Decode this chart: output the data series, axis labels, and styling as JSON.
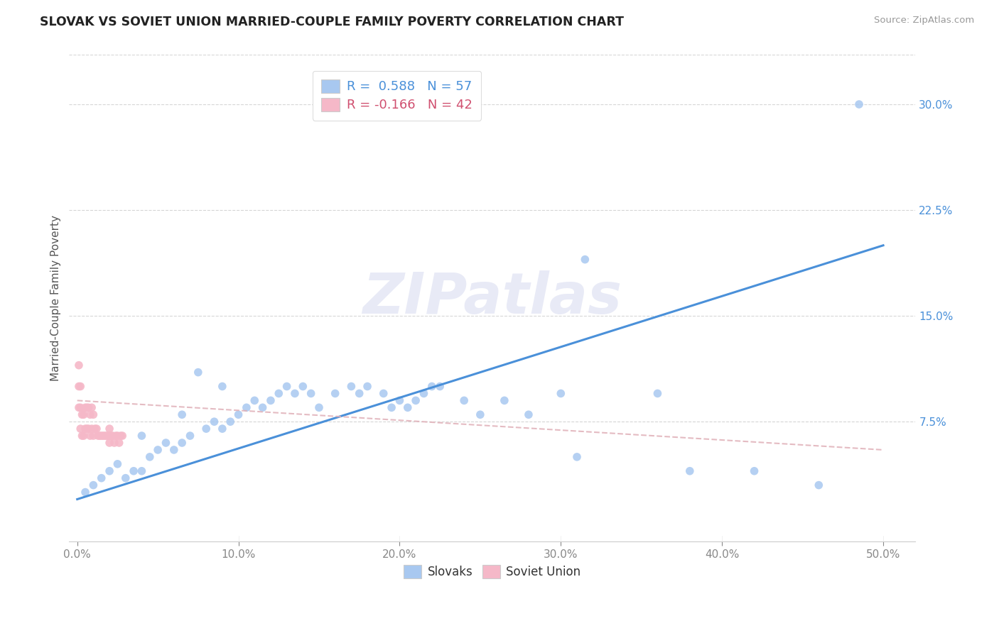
{
  "title": "SLOVAK VS SOVIET UNION MARRIED-COUPLE FAMILY POVERTY CORRELATION CHART",
  "source": "Source: ZipAtlas.com",
  "ylabel": "Married-Couple Family Poverty",
  "xlim": [
    -0.005,
    0.52
  ],
  "ylim": [
    -0.01,
    0.335
  ],
  "xticks": [
    0.0,
    0.1,
    0.2,
    0.3,
    0.4,
    0.5
  ],
  "xtick_labels": [
    "0.0%",
    "10.0%",
    "20.0%",
    "30.0%",
    "40.0%",
    "50.0%"
  ],
  "ytick_labels": [
    "7.5%",
    "15.0%",
    "22.5%",
    "30.0%"
  ],
  "yticks": [
    0.075,
    0.15,
    0.225,
    0.3
  ],
  "background_color": "#ffffff",
  "grid_color": "#cccccc",
  "slovak_color": "#a8c8f0",
  "soviet_color": "#f5b8c8",
  "trend_slovak_color": "#4a90d9",
  "trend_soviet_color": "#e0b0b8",
  "legend_slovak_R": "0.588",
  "legend_slovak_N": "57",
  "legend_soviet_R": "-0.166",
  "legend_soviet_N": "42",
  "legend_slovak_text_color": "#4a90d9",
  "legend_soviet_text_color": "#d05070",
  "ytick_color": "#4a90d9",
  "xtick_color": "#888888",
  "ylabel_color": "#555555",
  "title_color": "#222222",
  "source_color": "#999999",
  "watermark_color": "#e8eaf6",
  "slovak_x": [
    0.005,
    0.01,
    0.015,
    0.02,
    0.025,
    0.03,
    0.035,
    0.04,
    0.04,
    0.045,
    0.05,
    0.055,
    0.06,
    0.065,
    0.065,
    0.07,
    0.075,
    0.08,
    0.085,
    0.09,
    0.09,
    0.095,
    0.1,
    0.105,
    0.11,
    0.115,
    0.12,
    0.125,
    0.13,
    0.135,
    0.14,
    0.145,
    0.15,
    0.16,
    0.17,
    0.175,
    0.18,
    0.19,
    0.195,
    0.2,
    0.205,
    0.21,
    0.215,
    0.22,
    0.225,
    0.24,
    0.25,
    0.265,
    0.28,
    0.3,
    0.31,
    0.315,
    0.36,
    0.38,
    0.42,
    0.46,
    0.485
  ],
  "slovak_y": [
    0.025,
    0.03,
    0.035,
    0.04,
    0.045,
    0.035,
    0.04,
    0.04,
    0.065,
    0.05,
    0.055,
    0.06,
    0.055,
    0.06,
    0.08,
    0.065,
    0.11,
    0.07,
    0.075,
    0.07,
    0.1,
    0.075,
    0.08,
    0.085,
    0.09,
    0.085,
    0.09,
    0.095,
    0.1,
    0.095,
    0.1,
    0.095,
    0.085,
    0.095,
    0.1,
    0.095,
    0.1,
    0.095,
    0.085,
    0.09,
    0.085,
    0.09,
    0.095,
    0.1,
    0.1,
    0.09,
    0.08,
    0.09,
    0.08,
    0.095,
    0.05,
    0.19,
    0.095,
    0.04,
    0.04,
    0.03,
    0.3
  ],
  "soviet_x": [
    0.001,
    0.001,
    0.001,
    0.002,
    0.002,
    0.002,
    0.003,
    0.003,
    0.004,
    0.004,
    0.005,
    0.005,
    0.006,
    0.006,
    0.007,
    0.007,
    0.008,
    0.008,
    0.009,
    0.009,
    0.01,
    0.01,
    0.011,
    0.012,
    0.013,
    0.014,
    0.015,
    0.016,
    0.017,
    0.018,
    0.019,
    0.02,
    0.02,
    0.02,
    0.021,
    0.022,
    0.023,
    0.024,
    0.025,
    0.026,
    0.027,
    0.028
  ],
  "soviet_y": [
    0.085,
    0.1,
    0.115,
    0.07,
    0.085,
    0.1,
    0.065,
    0.08,
    0.065,
    0.08,
    0.07,
    0.085,
    0.07,
    0.085,
    0.07,
    0.085,
    0.065,
    0.08,
    0.07,
    0.085,
    0.065,
    0.08,
    0.07,
    0.07,
    0.065,
    0.065,
    0.065,
    0.065,
    0.065,
    0.065,
    0.065,
    0.07,
    0.065,
    0.06,
    0.065,
    0.065,
    0.06,
    0.065,
    0.065,
    0.06,
    0.065,
    0.065
  ],
  "trend_sk_x0": 0.0,
  "trend_sk_y0": 0.02,
  "trend_sk_x1": 0.5,
  "trend_sk_y1": 0.2,
  "trend_sov_x0": 0.0,
  "trend_sov_y0": 0.09,
  "trend_sov_x1": 0.5,
  "trend_sov_y1": 0.055
}
